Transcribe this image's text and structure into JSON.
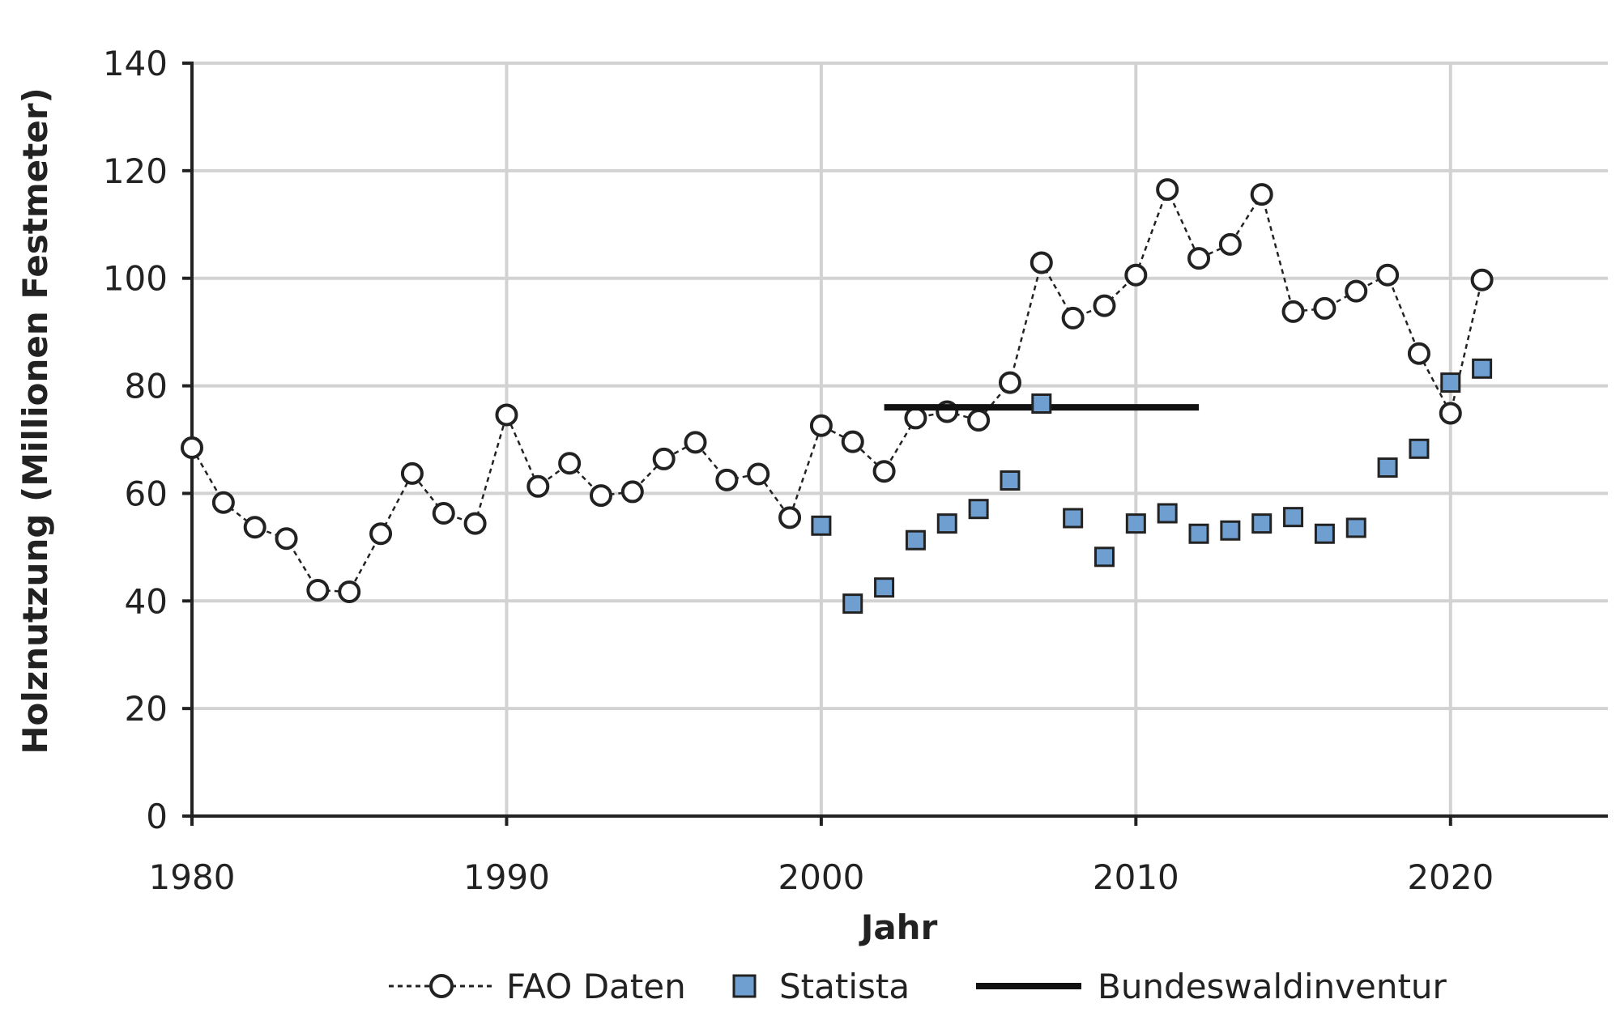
{
  "chart_data": {
    "type": "scatter",
    "xlabel": "Jahr",
    "ylabel": "Holznutzung (Millionen Festmeter)",
    "xlim": [
      1980,
      2025
    ],
    "ylim": [
      0,
      140
    ],
    "x_ticks": [
      1980,
      1990,
      2000,
      2010,
      2020
    ],
    "x_tick_labels": [
      "1980",
      "1990",
      "2000",
      "2010",
      "2020"
    ],
    "y_ticks": [
      0,
      20,
      40,
      60,
      80,
      100,
      120,
      140
    ],
    "y_tick_labels": [
      "0",
      "20",
      "40",
      "60",
      "80",
      "100",
      "120",
      "140"
    ],
    "grid": true,
    "legend_position": "bottom",
    "series": [
      {
        "name": "FAO Daten",
        "style": "dotted line with open circle markers",
        "color": "#222222",
        "x": [
          1980,
          1981,
          1982,
          1983,
          1984,
          1985,
          1986,
          1987,
          1988,
          1989,
          1990,
          1991,
          1992,
          1993,
          1994,
          1995,
          1996,
          1997,
          1998,
          1999,
          2000,
          2001,
          2002,
          2003,
          2004,
          2005,
          2006,
          2007,
          2008,
          2009,
          2010,
          2011,
          2012,
          2013,
          2014,
          2015,
          2016,
          2017,
          2018,
          2019,
          2020,
          2021
        ],
        "y": [
          68.5,
          58.3,
          53.7,
          51.6,
          42,
          41.7,
          52.5,
          63.7,
          56.3,
          54.4,
          74.6,
          61.3,
          65.6,
          59.6,
          60.3,
          66.4,
          69.5,
          62.5,
          63.6,
          55.5,
          72.6,
          69.6,
          64.1,
          74,
          75.2,
          73.6,
          80.6,
          102.9,
          92.6,
          94.9,
          100.6,
          116.5,
          103.7,
          106.3,
          115.6,
          93.8,
          94.4,
          97.6,
          100.6,
          86,
          74.9,
          99.7
        ]
      },
      {
        "name": "Statista",
        "style": "square markers",
        "color": "#6f9fd0",
        "x": [
          2000,
          2001,
          2002,
          2003,
          2004,
          2005,
          2006,
          2007,
          2008,
          2009,
          2010,
          2011,
          2012,
          2013,
          2014,
          2015,
          2016,
          2017,
          2018,
          2019,
          2020,
          2021
        ],
        "y": [
          54,
          39.5,
          42.5,
          51.3,
          54.4,
          57.1,
          62.4,
          76.7,
          55.4,
          48.2,
          54.4,
          56.3,
          52.5,
          53.1,
          54.4,
          55.6,
          52.5,
          53.6,
          64.8,
          68.3,
          80.6,
          83.2
        ]
      },
      {
        "name": "Bundeswaldinventur",
        "style": "solid horizontal line",
        "color": "#111111",
        "x": [
          2002,
          2012
        ],
        "y": [
          76,
          76
        ]
      }
    ]
  }
}
